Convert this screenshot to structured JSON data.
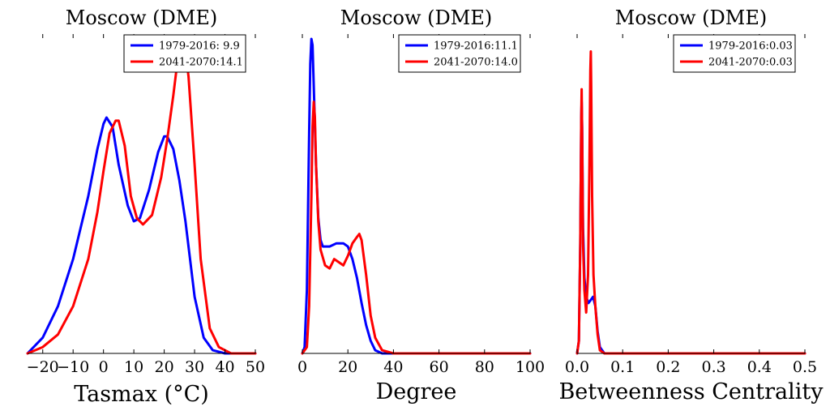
{
  "colors": {
    "series_1": "#0000ff",
    "series_2": "#ff0000",
    "axis": "#000000"
  },
  "chart_data": [
    {
      "type": "line",
      "title": "Moscow (DME)",
      "xlabel": "Tasmax (°C)",
      "ylabel": "",
      "xlim": [
        -25,
        50
      ],
      "ylim": [
        0,
        1
      ],
      "xticks": [
        -20,
        -10,
        0,
        10,
        20,
        30,
        40,
        50
      ],
      "xtick_labels": [
        "−20",
        "−10",
        "0",
        "10",
        "20",
        "30",
        "40",
        "50"
      ],
      "legend_position": "top-right",
      "series": [
        {
          "name": "1979-2016: 9.9",
          "color": "#0000ff",
          "x": [
            -25,
            -20,
            -15,
            -10,
            -5,
            -2,
            0,
            1,
            3,
            5,
            8,
            10,
            12,
            15,
            18,
            20,
            21,
            23,
            25,
            27,
            30,
            33,
            36,
            40,
            45,
            50
          ],
          "y": [
            0.0,
            0.05,
            0.15,
            0.3,
            0.5,
            0.65,
            0.73,
            0.75,
            0.72,
            0.6,
            0.47,
            0.42,
            0.43,
            0.52,
            0.64,
            0.69,
            0.69,
            0.65,
            0.55,
            0.42,
            0.18,
            0.05,
            0.01,
            0.0,
            0.0,
            0.0
          ]
        },
        {
          "name": "2041-2070:14.1",
          "color": "#ff0000",
          "x": [
            -25,
            -20,
            -15,
            -10,
            -5,
            -2,
            0,
            2,
            4,
            5,
            7,
            9,
            11,
            13,
            16,
            19,
            21,
            23,
            24,
            25,
            26,
            27,
            28,
            30,
            32,
            35,
            38,
            42,
            50
          ],
          "y": [
            0.0,
            0.02,
            0.06,
            0.15,
            0.3,
            0.45,
            0.58,
            0.7,
            0.74,
            0.74,
            0.66,
            0.5,
            0.43,
            0.41,
            0.44,
            0.56,
            0.68,
            0.82,
            0.9,
            0.96,
            0.98,
            0.96,
            0.88,
            0.6,
            0.3,
            0.08,
            0.02,
            0.0,
            0.0
          ]
        }
      ]
    },
    {
      "type": "line",
      "title": "Moscow (DME)",
      "xlabel": "Degree",
      "ylabel": "",
      "xlim": [
        0,
        100
      ],
      "ylim": [
        0,
        1
      ],
      "xticks": [
        0,
        20,
        40,
        60,
        80,
        100
      ],
      "xtick_labels": [
        "0",
        "20",
        "40",
        "60",
        "80",
        "100"
      ],
      "legend_position": "top-right",
      "series": [
        {
          "name": "1979-2016:11.1",
          "color": "#0000ff",
          "x": [
            0,
            1,
            2,
            3,
            3.5,
            4,
            4.5,
            5,
            6,
            7,
            8,
            9,
            10,
            12,
            15,
            18,
            20,
            22,
            24,
            26,
            28,
            30,
            32,
            35,
            40,
            50,
            100
          ],
          "y": [
            0.0,
            0.02,
            0.2,
            0.7,
            0.92,
            1.0,
            0.98,
            0.85,
            0.6,
            0.43,
            0.36,
            0.34,
            0.34,
            0.34,
            0.35,
            0.35,
            0.34,
            0.3,
            0.24,
            0.16,
            0.09,
            0.04,
            0.01,
            0.0,
            0.0,
            0.0,
            0.0
          ]
        },
        {
          "name": "2041-2070:14.0",
          "color": "#ff0000",
          "x": [
            0,
            2,
            3,
            4,
            4.5,
            5,
            5.5,
            6,
            7,
            8,
            10,
            12,
            14,
            16,
            18,
            20,
            22,
            24,
            25,
            26,
            28,
            30,
            32,
            35,
            40,
            50,
            100
          ],
          "y": [
            0.0,
            0.02,
            0.15,
            0.5,
            0.72,
            0.8,
            0.75,
            0.6,
            0.42,
            0.33,
            0.28,
            0.27,
            0.3,
            0.29,
            0.28,
            0.31,
            0.35,
            0.37,
            0.38,
            0.36,
            0.25,
            0.12,
            0.05,
            0.01,
            0.0,
            0.0,
            0.0
          ]
        }
      ]
    },
    {
      "type": "line",
      "title": "Moscow (DME)",
      "xlabel": "Betweenness Centrality",
      "ylabel": "",
      "xlim": [
        0,
        0.5
      ],
      "ylim": [
        0,
        1
      ],
      "xticks": [
        0.0,
        0.1,
        0.2,
        0.3,
        0.4,
        0.5
      ],
      "xtick_labels": [
        "0.0",
        "0.1",
        "0.2",
        "0.3",
        "0.4",
        "0.5"
      ],
      "legend_position": "top-right",
      "series": [
        {
          "name": "1979-2016:0.03",
          "color": "#0000ff",
          "x": [
            0,
            0.004,
            0.007,
            0.009,
            0.01,
            0.011,
            0.013,
            0.016,
            0.02,
            0.025,
            0.03,
            0.035,
            0.04,
            0.045,
            0.05,
            0.06,
            0.1,
            0.5
          ],
          "y": [
            0.0,
            0.04,
            0.35,
            0.75,
            0.8,
            0.72,
            0.4,
            0.24,
            0.18,
            0.16,
            0.17,
            0.18,
            0.15,
            0.07,
            0.02,
            0.0,
            0.0,
            0.0
          ]
        },
        {
          "name": "2041-2070:0.03",
          "color": "#ff0000",
          "x": [
            0,
            0.004,
            0.007,
            0.009,
            0.01,
            0.011,
            0.013,
            0.016,
            0.02,
            0.024,
            0.027,
            0.029,
            0.03,
            0.031,
            0.033,
            0.036,
            0.04,
            0.045,
            0.05,
            0.06,
            0.1,
            0.5
          ],
          "y": [
            0.0,
            0.04,
            0.35,
            0.75,
            0.84,
            0.7,
            0.35,
            0.2,
            0.13,
            0.25,
            0.6,
            0.9,
            0.96,
            0.85,
            0.5,
            0.25,
            0.15,
            0.06,
            0.01,
            0.0,
            0.0,
            0.0
          ]
        }
      ]
    }
  ]
}
